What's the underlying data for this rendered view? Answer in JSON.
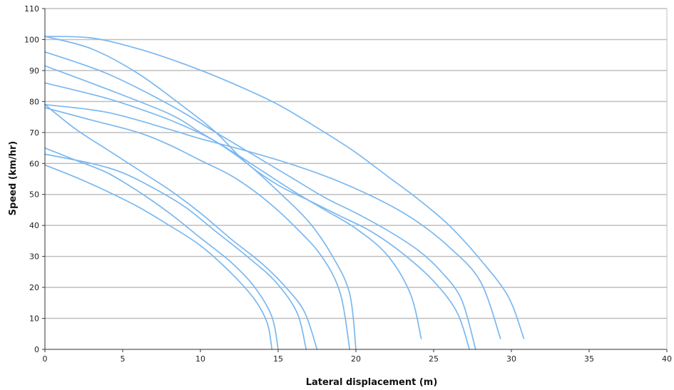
{
  "chart_data": {
    "type": "line",
    "title": "",
    "xlabel": "Lateral displacement (m)",
    "ylabel": "Speed (km/hr)",
    "xlim": [
      0,
      40
    ],
    "ylim": [
      0,
      110
    ],
    "xticks": [
      0,
      5,
      10,
      15,
      20,
      25,
      30,
      35,
      40
    ],
    "yticks": [
      0,
      10,
      20,
      30,
      40,
      50,
      60,
      70,
      80,
      90,
      100,
      110
    ],
    "grid": "horizontal",
    "legend": "none",
    "line_color": "#7ab8f0",
    "series": [
      {
        "values": [
          [
            0,
            59.5
          ],
          [
            2,
            55.5
          ],
          [
            4,
            51
          ],
          [
            6,
            46
          ],
          [
            8,
            40
          ],
          [
            10,
            33.5
          ],
          [
            12,
            24.5
          ],
          [
            13.5,
            16
          ],
          [
            14.3,
            8.5
          ],
          [
            14.6,
            0
          ]
        ]
      },
      {
        "values": [
          [
            0,
            65
          ],
          [
            2,
            61
          ],
          [
            4,
            57
          ],
          [
            6,
            51
          ],
          [
            8,
            44
          ],
          [
            10,
            36
          ],
          [
            12,
            28
          ],
          [
            13.5,
            20
          ],
          [
            14.6,
            10.5
          ],
          [
            15,
            0
          ]
        ]
      },
      {
        "values": [
          [
            0,
            63
          ],
          [
            3,
            60
          ],
          [
            5,
            57
          ],
          [
            7,
            52
          ],
          [
            9,
            46
          ],
          [
            11,
            38
          ],
          [
            13,
            30
          ],
          [
            14.8,
            22
          ],
          [
            16.2,
            12
          ],
          [
            16.8,
            0
          ]
        ]
      },
      {
        "values": [
          [
            0,
            79
          ],
          [
            2,
            71
          ],
          [
            4,
            64.5
          ],
          [
            6,
            58
          ],
          [
            8,
            51.5
          ],
          [
            10,
            44
          ],
          [
            12,
            35.5
          ],
          [
            14,
            27.5
          ],
          [
            15.5,
            20
          ],
          [
            16.7,
            12
          ],
          [
            17.5,
            0
          ]
        ]
      },
      {
        "values": [
          [
            0,
            78
          ],
          [
            3,
            74
          ],
          [
            6,
            70
          ],
          [
            8,
            66
          ],
          [
            10,
            61
          ],
          [
            12,
            56
          ],
          [
            14,
            49
          ],
          [
            16,
            40
          ],
          [
            17.8,
            30
          ],
          [
            19,
            18
          ],
          [
            19.6,
            0
          ]
        ]
      },
      {
        "values": [
          [
            0,
            86
          ],
          [
            4,
            81
          ],
          [
            7,
            76
          ],
          [
            9,
            72
          ],
          [
            11,
            67
          ],
          [
            13,
            60
          ],
          [
            15,
            51
          ],
          [
            17,
            41
          ],
          [
            18.5,
            30
          ],
          [
            19.6,
            18
          ],
          [
            20,
            0
          ]
        ]
      },
      {
        "values": [
          [
            0,
            91.5
          ],
          [
            4,
            84
          ],
          [
            8,
            76
          ],
          [
            10,
            70
          ],
          [
            12,
            64
          ],
          [
            14,
            57.5
          ],
          [
            16,
            51
          ],
          [
            18,
            45
          ],
          [
            20,
            39
          ],
          [
            22,
            30.5
          ],
          [
            23.5,
            18
          ],
          [
            24.2,
            3.5
          ]
        ]
      },
      {
        "values": [
          [
            0,
            101
          ],
          [
            3,
            97
          ],
          [
            6,
            89
          ],
          [
            9,
            78
          ],
          [
            11,
            70
          ],
          [
            13,
            60
          ],
          [
            15,
            53
          ],
          [
            17,
            48
          ],
          [
            19,
            43
          ],
          [
            21,
            38
          ],
          [
            23,
            31
          ],
          [
            25,
            22
          ],
          [
            26.5,
            12
          ],
          [
            27.3,
            0
          ]
        ]
      },
      {
        "values": [
          [
            0,
            96
          ],
          [
            4,
            89
          ],
          [
            8,
            79
          ],
          [
            11,
            70
          ],
          [
            14,
            61
          ],
          [
            16,
            55
          ],
          [
            18,
            49
          ],
          [
            20,
            44
          ],
          [
            22,
            38.5
          ],
          [
            24,
            32
          ],
          [
            25.5,
            25
          ],
          [
            26.8,
            16
          ],
          [
            27.7,
            0
          ]
        ]
      },
      {
        "values": [
          [
            0,
            79
          ],
          [
            4,
            76.5
          ],
          [
            8,
            71
          ],
          [
            10,
            68
          ],
          [
            13,
            64
          ],
          [
            16,
            59.5
          ],
          [
            19,
            54
          ],
          [
            22,
            47
          ],
          [
            24,
            41
          ],
          [
            26,
            33
          ],
          [
            28,
            22
          ],
          [
            29.3,
            3.5
          ]
        ]
      },
      {
        "values": [
          [
            0,
            101
          ],
          [
            3,
            100.5
          ],
          [
            6,
            97
          ],
          [
            9,
            92
          ],
          [
            12,
            86
          ],
          [
            15,
            79
          ],
          [
            18,
            70
          ],
          [
            20,
            63.5
          ],
          [
            22,
            56
          ],
          [
            24,
            48.5
          ],
          [
            26,
            40
          ],
          [
            28,
            29
          ],
          [
            29.8,
            17
          ],
          [
            30.8,
            3.5
          ]
        ]
      }
    ]
  }
}
